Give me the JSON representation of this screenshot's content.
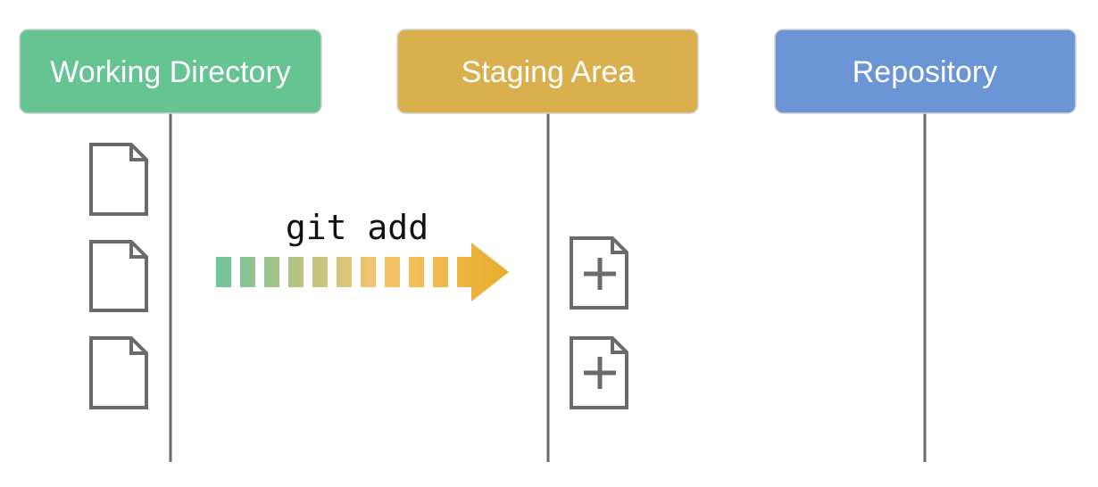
{
  "lanes": [
    {
      "label": "Working Directory",
      "color": "#66c492"
    },
    {
      "label": "Staging Area",
      "color": "#d9b04d"
    },
    {
      "label": "Repository",
      "color": "#6c95d6"
    }
  ],
  "command": {
    "label": "git add",
    "gradient_start": "#6ec49a",
    "gradient_mid": "#f5c46e",
    "gradient_end": "#e9ad2b"
  },
  "working_files": [
    {
      "icon": "file-icon"
    },
    {
      "icon": "file-icon"
    },
    {
      "icon": "file-icon"
    }
  ],
  "staged_files": [
    {
      "icon": "file-plus-icon"
    },
    {
      "icon": "file-plus-icon"
    }
  ]
}
